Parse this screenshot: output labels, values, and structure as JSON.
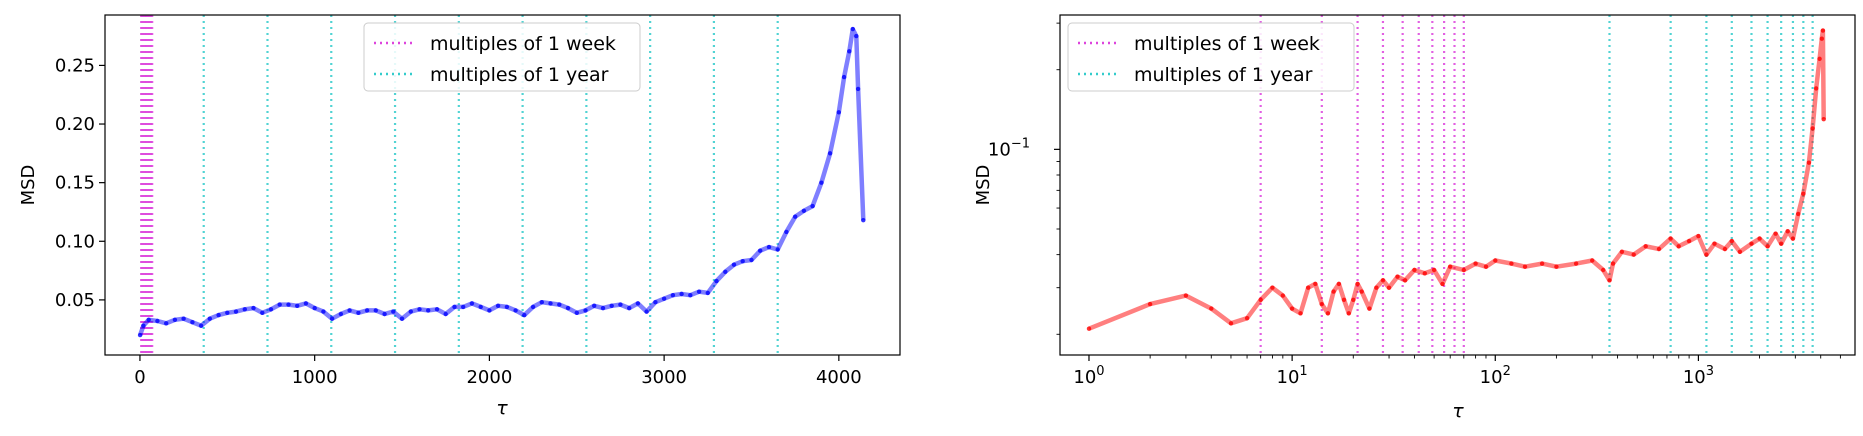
{
  "chart_data": [
    {
      "type": "line",
      "xscale": "linear",
      "yscale": "linear",
      "xlabel": "τ",
      "ylabel": "MSD",
      "xlim": [
        -200,
        4350
      ],
      "ylim": [
        0.003,
        0.293
      ],
      "xticks": [
        0,
        1000,
        2000,
        3000,
        4000
      ],
      "xtick_labels": [
        "0",
        "1000",
        "2000",
        "3000",
        "4000"
      ],
      "yticks": [
        0.05,
        0.1,
        0.15,
        0.2,
        0.25
      ],
      "ytick_labels": [
        "0.05",
        "0.10",
        "0.15",
        "0.20",
        "0.25"
      ],
      "legend": {
        "placement": "top-center",
        "entries": [
          {
            "label": "multiples of 1 week",
            "color": "#dd44dd",
            "style": "dotted"
          },
          {
            "label": "multiples of 1 year",
            "color": "#33cccc",
            "style": "dotted"
          }
        ]
      },
      "week_lines_x": [
        7,
        14,
        21,
        28,
        35,
        42,
        49,
        56,
        63,
        70
      ],
      "year_lines_x": [
        365,
        730,
        1095,
        1460,
        1825,
        2190,
        2555,
        2920,
        3285,
        3650
      ],
      "series": [
        {
          "color": "#0000ff",
          "x": [
            1,
            20,
            50,
            100,
            150,
            200,
            250,
            300,
            350,
            400,
            450,
            500,
            550,
            600,
            650,
            700,
            750,
            800,
            850,
            900,
            950,
            1000,
            1050,
            1100,
            1150,
            1200,
            1250,
            1300,
            1350,
            1400,
            1450,
            1500,
            1550,
            1600,
            1650,
            1700,
            1750,
            1800,
            1850,
            1900,
            1950,
            2000,
            2050,
            2100,
            2150,
            2200,
            2250,
            2300,
            2350,
            2400,
            2450,
            2500,
            2550,
            2600,
            2650,
            2700,
            2750,
            2800,
            2850,
            2900,
            2950,
            3000,
            3050,
            3100,
            3150,
            3200,
            3250,
            3300,
            3350,
            3400,
            3450,
            3500,
            3550,
            3600,
            3650,
            3700,
            3750,
            3800,
            3850,
            3900,
            3950,
            4000,
            4030,
            4060,
            4080,
            4100,
            4110,
            4140
          ],
          "y": [
            0.02,
            0.028,
            0.033,
            0.032,
            0.03,
            0.033,
            0.034,
            0.031,
            0.028,
            0.034,
            0.037,
            0.039,
            0.04,
            0.042,
            0.043,
            0.039,
            0.042,
            0.046,
            0.046,
            0.045,
            0.047,
            0.043,
            0.04,
            0.034,
            0.038,
            0.041,
            0.039,
            0.041,
            0.041,
            0.038,
            0.04,
            0.034,
            0.04,
            0.042,
            0.041,
            0.042,
            0.038,
            0.044,
            0.044,
            0.047,
            0.044,
            0.041,
            0.045,
            0.044,
            0.041,
            0.037,
            0.044,
            0.048,
            0.047,
            0.046,
            0.043,
            0.039,
            0.041,
            0.045,
            0.043,
            0.045,
            0.046,
            0.043,
            0.047,
            0.04,
            0.048,
            0.051,
            0.054,
            0.055,
            0.054,
            0.057,
            0.056,
            0.066,
            0.074,
            0.08,
            0.083,
            0.084,
            0.092,
            0.095,
            0.093,
            0.108,
            0.121,
            0.126,
            0.13,
            0.15,
            0.175,
            0.21,
            0.24,
            0.262,
            0.281,
            0.275,
            0.23,
            0.118
          ]
        }
      ]
    },
    {
      "type": "line",
      "xscale": "log",
      "yscale": "log",
      "xlabel": "τ",
      "ylabel": "MSD",
      "xlim": [
        0.72,
        5900
      ],
      "ylim": [
        0.0167,
        0.322
      ],
      "xticks": [
        1,
        10,
        100,
        1000
      ],
      "xtick_labels": [
        "10^0",
        "10^1",
        "10^2",
        "10^3"
      ],
      "yticks": [
        0.1
      ],
      "ytick_labels": [
        "10^−1"
      ],
      "legend": {
        "placement": "top-left",
        "entries": [
          {
            "label": "multiples of 1 week",
            "color": "#dd44dd",
            "style": "dotted"
          },
          {
            "label": "multiples of 1 year",
            "color": "#33cccc",
            "style": "dotted"
          }
        ]
      },
      "week_lines_x": [
        7,
        14,
        21,
        28,
        35,
        42,
        49,
        56,
        63,
        70
      ],
      "year_lines_x": [
        365,
        730,
        1095,
        1460,
        1825,
        2190,
        2555,
        2920,
        3285,
        3650
      ],
      "series": [
        {
          "color": "#ff0000",
          "x": [
            1,
            2,
            3,
            4,
            5,
            6,
            7,
            8,
            9,
            10,
            11,
            12,
            13,
            14,
            15,
            16,
            17,
            18,
            19,
            20,
            21,
            22,
            24,
            26,
            28,
            30,
            33,
            36,
            40,
            45,
            50,
            55,
            60,
            70,
            80,
            90,
            100,
            120,
            140,
            170,
            200,
            250,
            300,
            340,
            365,
            380,
            420,
            480,
            550,
            640,
            730,
            800,
            900,
            1000,
            1095,
            1200,
            1350,
            1460,
            1600,
            1825,
            2000,
            2190,
            2400,
            2555,
            2750,
            2920,
            3100,
            3285,
            3500,
            3650,
            3800,
            3950,
            4050,
            4100,
            4140
          ],
          "y": [
            0.021,
            0.026,
            0.028,
            0.025,
            0.022,
            0.023,
            0.027,
            0.03,
            0.028,
            0.025,
            0.024,
            0.03,
            0.031,
            0.026,
            0.024,
            0.029,
            0.031,
            0.027,
            0.024,
            0.027,
            0.031,
            0.029,
            0.025,
            0.03,
            0.032,
            0.03,
            0.033,
            0.032,
            0.035,
            0.034,
            0.035,
            0.031,
            0.036,
            0.035,
            0.037,
            0.036,
            0.038,
            0.037,
            0.036,
            0.037,
            0.036,
            0.037,
            0.038,
            0.035,
            0.032,
            0.037,
            0.041,
            0.04,
            0.043,
            0.042,
            0.046,
            0.043,
            0.045,
            0.047,
            0.04,
            0.044,
            0.042,
            0.045,
            0.041,
            0.044,
            0.046,
            0.043,
            0.048,
            0.044,
            0.049,
            0.046,
            0.057,
            0.068,
            0.089,
            0.12,
            0.17,
            0.22,
            0.262,
            0.281,
            0.13
          ]
        }
      ]
    }
  ]
}
